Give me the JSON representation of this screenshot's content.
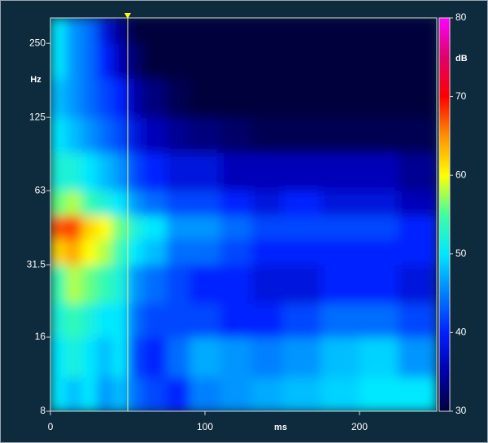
{
  "chart_data": {
    "type": "spectrogram",
    "x_label": "ms",
    "y_label": "Hz",
    "xlim": [
      0,
      250
    ],
    "xticks": [
      0,
      100,
      200
    ],
    "ylim": [
      8,
      317
    ],
    "yticks": [
      8,
      16,
      31.5,
      63,
      125,
      250
    ],
    "log_y": true,
    "xbins": [
      0,
      10,
      20,
      30,
      40,
      50,
      60,
      75,
      90,
      110,
      130,
      150,
      175,
      200,
      225,
      250
    ],
    "ybins": [
      8,
      11,
      16,
      22,
      31.5,
      40,
      50,
      63,
      90,
      125,
      180,
      250,
      317
    ],
    "z": [
      [
        50,
        48,
        50,
        46,
        48,
        44,
        42,
        40,
        45,
        46,
        47,
        48,
        49,
        50,
        50
      ],
      [
        50,
        52,
        50,
        48,
        50,
        42,
        40,
        44,
        47,
        46,
        45,
        46,
        48,
        49,
        46
      ],
      [
        52,
        54,
        52,
        50,
        50,
        44,
        42,
        42,
        42,
        40,
        40,
        42,
        44,
        44,
        42
      ],
      [
        54,
        58,
        56,
        54,
        52,
        46,
        44,
        42,
        40,
        40,
        38,
        38,
        40,
        40,
        38
      ],
      [
        62,
        64,
        60,
        58,
        54,
        50,
        48,
        44,
        44,
        42,
        40,
        40,
        40,
        40,
        40
      ],
      [
        67,
        68,
        62,
        60,
        56,
        52,
        50,
        46,
        46,
        44,
        42,
        42,
        42,
        42,
        40
      ],
      [
        56,
        58,
        54,
        52,
        50,
        46,
        44,
        42,
        42,
        40,
        38,
        40,
        38,
        38,
        36
      ],
      [
        52,
        52,
        50,
        48,
        46,
        42,
        40,
        38,
        38,
        36,
        36,
        36,
        36,
        36,
        34
      ],
      [
        50,
        48,
        46,
        44,
        42,
        38,
        36,
        34,
        33,
        32,
        31,
        31,
        31,
        31,
        31
      ],
      [
        48,
        46,
        44,
        42,
        40,
        35,
        33,
        31,
        30,
        30,
        30,
        30,
        30,
        30,
        30
      ],
      [
        50,
        46,
        44,
        40,
        36,
        32,
        30,
        30,
        30,
        30,
        30,
        30,
        30,
        30,
        30
      ],
      [
        50,
        46,
        44,
        38,
        34,
        30,
        30,
        30,
        30,
        30,
        30,
        30,
        30,
        30,
        30
      ]
    ],
    "cursor": 50,
    "colorbar": {
      "label": "dB",
      "lim": [
        30,
        80
      ],
      "ticks": [
        30,
        40,
        50,
        60,
        70,
        80
      ],
      "colors": [
        "#00003c",
        "#0000a8",
        "#0020ff",
        "#0080ff",
        "#00e8ff",
        "#40ffa0",
        "#ffff00",
        "#ff9000",
        "#ff0000",
        "#e0006a",
        "#ff00ff"
      ]
    }
  }
}
